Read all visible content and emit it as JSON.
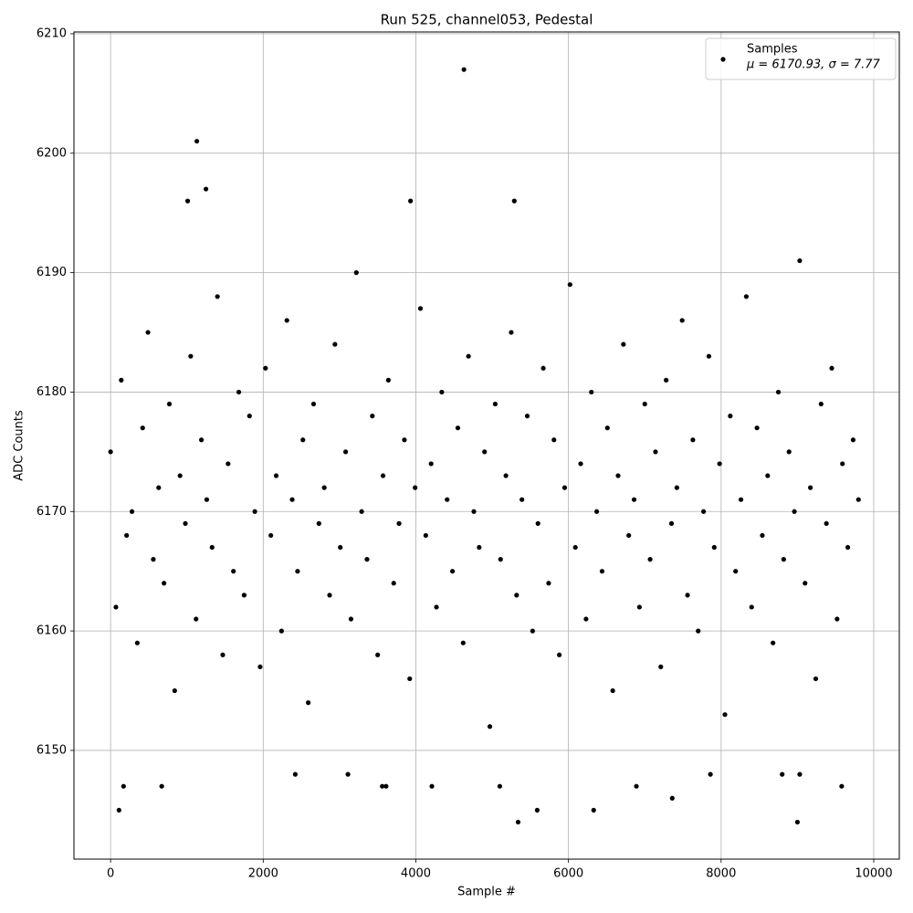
{
  "chart_data": {
    "type": "scatter",
    "title": "Run 525, channel053, Pedestal",
    "x_label": "Sample #",
    "y_label": "ADC Counts",
    "legend_note": "μ = 6170.93, σ = 7.77",
    "legend": "upper right",
    "grid": true,
    "xlim": [
      -480,
      10335
    ],
    "ylim": [
      6140.9,
      6210.15
    ],
    "xticks": [
      0,
      2000,
      4000,
      6000,
      8000,
      10000
    ],
    "yticks": [
      6150,
      6160,
      6170,
      6180,
      6190,
      6200,
      6210
    ],
    "series": [
      {
        "name": "Samples",
        "color": "#000000",
        "x": [
          0,
          70,
          140,
          210,
          280,
          350,
          420,
          490,
          560,
          630,
          700,
          770,
          840,
          910,
          980,
          1050,
          1120,
          1190,
          1260,
          1330,
          1400,
          1470,
          1540,
          1610,
          1680,
          1750,
          1820,
          1890,
          1960,
          2030,
          2100,
          2170,
          2240,
          2310,
          2380,
          2450,
          2520,
          2590,
          2660,
          2730,
          2800,
          2870,
          2940,
          3010,
          3080,
          3150,
          3220,
          3290,
          3360,
          3430,
          3500,
          3570,
          3640,
          3710,
          3780,
          3850,
          3920,
          3990,
          4060,
          4130,
          4200,
          4270,
          4340,
          4410,
          4480,
          4550,
          4620,
          4690,
          4760,
          4830,
          4900,
          4970,
          5040,
          5110,
          5180,
          5250,
          5320,
          5390,
          5460,
          5530,
          5600,
          5670,
          5740,
          5810,
          5880,
          5950,
          6020,
          6090,
          6160,
          6230,
          6300,
          6370,
          6440,
          6510,
          6580,
          6650,
          6720,
          6790,
          6860,
          6930,
          7000,
          7070,
          7140,
          7210,
          7280,
          7350,
          7420,
          7490,
          7560,
          7630,
          7700,
          7770,
          7840,
          7910,
          7980,
          8050,
          8120,
          8190,
          8260,
          8330,
          8400,
          8470,
          8540,
          8610,
          8680,
          8750,
          8820,
          8890,
          8960,
          9030,
          9100,
          9170,
          9240,
          9310,
          9380,
          9450,
          9520,
          9590,
          9660,
          9730,
          9800,
          4630,
          1130,
          1250,
          1010,
          3930,
          5290,
          110,
          5340,
          9000,
          7360,
          6330,
          5590,
          170,
          670,
          4210,
          5100,
          3560,
          3610,
          6890,
          9580,
          2420,
          3110,
          7860,
          8800,
          9030
        ],
        "values": [
          6175,
          6162,
          6181,
          6168,
          6170,
          6159,
          6177,
          6185,
          6166,
          6172,
          6164,
          6179,
          6155,
          6173,
          6169,
          6183,
          6161,
          6176,
          6171,
          6167,
          6188,
          6158,
          6174,
          6165,
          6180,
          6163,
          6178,
          6170,
          6157,
          6182,
          6168,
          6173,
          6160,
          6186,
          6171,
          6165,
          6176,
          6154,
          6179,
          6169,
          6172,
          6163,
          6184,
          6167,
          6175,
          6161,
          6190,
          6170,
          6166,
          6178,
          6158,
          6173,
          6181,
          6164,
          6169,
          6176,
          6156,
          6172,
          6187,
          6168,
          6174,
          6162,
          6180,
          6171,
          6165,
          6177,
          6159,
          6183,
          6170,
          6167,
          6175,
          6152,
          6179,
          6166,
          6173,
          6185,
          6163,
          6171,
          6178,
          6160,
          6169,
          6182,
          6164,
          6176,
          6158,
          6172,
          6189,
          6167,
          6174,
          6161,
          6180,
          6170,
          6165,
          6177,
          6155,
          6173,
          6184,
          6168,
          6171,
          6162,
          6179,
          6166,
          6175,
          6157,
          6181,
          6169,
          6172,
          6186,
          6163,
          6176,
          6160,
          6170,
          6183,
          6167,
          6174,
          6153,
          6178,
          6165,
          6171,
          6188,
          6162,
          6177,
          6168,
          6173,
          6159,
          6180,
          6166,
          6175,
          6170,
          6191,
          6164,
          6172,
          6156,
          6179,
          6169,
          6182,
          6161,
          6174,
          6167,
          6176,
          6171,
          6207,
          6201,
          6197,
          6196,
          6196,
          6196,
          6145,
          6144,
          6144,
          6146,
          6145,
          6145,
          6147,
          6147,
          6147,
          6147,
          6147,
          6147,
          6147,
          6147,
          6148,
          6148,
          6148,
          6148,
          6148
        ]
      }
    ]
  }
}
